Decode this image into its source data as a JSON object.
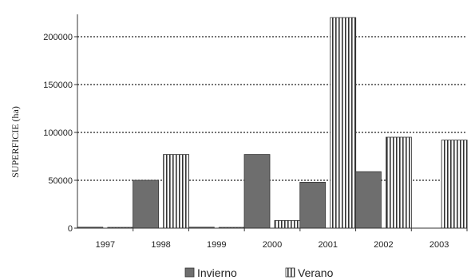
{
  "chart_data": {
    "type": "bar",
    "categories": [
      "1997",
      "1998",
      "1999",
      "2000",
      "2001",
      "2002",
      "2003"
    ],
    "series": [
      {
        "name": "Invierno",
        "values": [
          1000,
          50000,
          1000,
          77000,
          48000,
          59000,
          null
        ],
        "color": "#6e6e6e",
        "pattern": "solid"
      },
      {
        "name": "Verano",
        "values": [
          0,
          77000,
          0,
          8000,
          220000,
          95000,
          92000
        ],
        "color": "#ffffff",
        "pattern": "vertical-stripes"
      }
    ],
    "xlabel": "",
    "ylabel": "SUPERFICIE (ha)",
    "ylim": [
      0,
      200000
    ],
    "yticks": [
      "0",
      "50000",
      "100000",
      "150000",
      "200000"
    ],
    "grid": true,
    "grid_style": "dotted",
    "legend_position": "bottom"
  }
}
